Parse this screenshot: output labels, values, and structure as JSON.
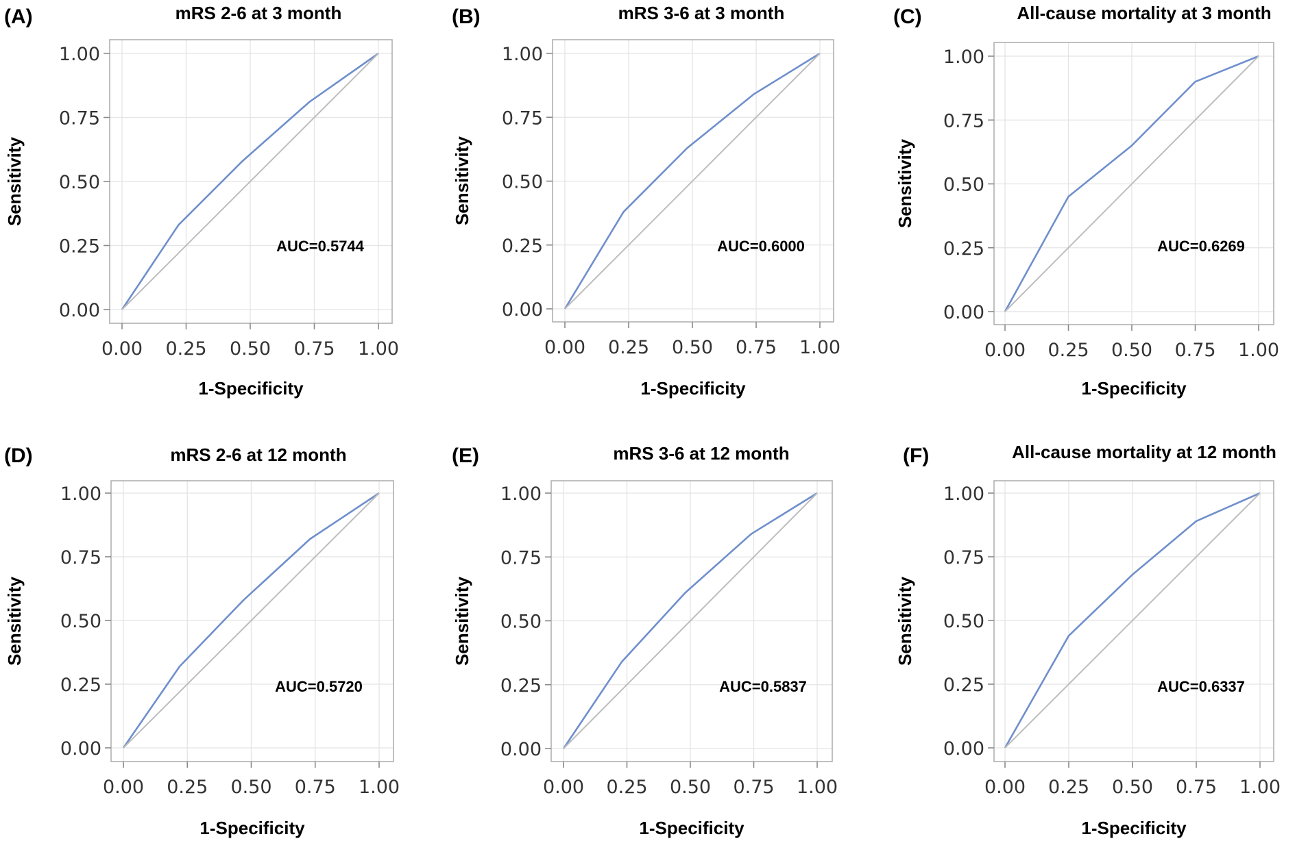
{
  "chart_data": [
    {
      "type": "line",
      "panel": "(A)",
      "title": "mRS 2-6 at 3 month",
      "xlabel": "1-Specificity",
      "ylabel": "Sensitivity",
      "xlim": [
        0,
        1
      ],
      "ylim": [
        0,
        1
      ],
      "xticks": [
        "0.00",
        "0.25",
        "0.50",
        "0.75",
        "1.00"
      ],
      "yticks": [
        "0.00",
        "0.25",
        "0.50",
        "0.75",
        "1.00"
      ],
      "annotation": "AUC=0.5744",
      "series": [
        {
          "name": "ROC",
          "x": [
            0,
            0.22,
            0.47,
            0.73,
            1.0
          ],
          "y": [
            0,
            0.33,
            0.58,
            0.81,
            1.0
          ]
        },
        {
          "name": "Reference",
          "x": [
            0,
            1
          ],
          "y": [
            0,
            1
          ]
        }
      ],
      "grid": true
    },
    {
      "type": "line",
      "panel": "(B)",
      "title": "mRS 3-6 at 3 month",
      "xlabel": "1-Specificity",
      "ylabel": "Sensitivity",
      "xlim": [
        0,
        1
      ],
      "ylim": [
        0,
        1
      ],
      "xticks": [
        "0.00",
        "0.25",
        "0.50",
        "0.75",
        "1.00"
      ],
      "yticks": [
        "0.00",
        "0.25",
        "0.50",
        "0.75",
        "1.00"
      ],
      "annotation": "AUC=0.6000",
      "series": [
        {
          "name": "ROC",
          "x": [
            0,
            0.23,
            0.48,
            0.74,
            1.0
          ],
          "y": [
            0,
            0.38,
            0.63,
            0.84,
            1.0
          ]
        },
        {
          "name": "Reference",
          "x": [
            0,
            1
          ],
          "y": [
            0,
            1
          ]
        }
      ],
      "grid": true
    },
    {
      "type": "line",
      "panel": "(C)",
      "title": "All-cause mortality at 3 month",
      "xlabel": "1-Specificity",
      "ylabel": "Sensitivity",
      "xlim": [
        0,
        1
      ],
      "ylim": [
        0,
        1
      ],
      "xticks": [
        "0.00",
        "0.25",
        "0.50",
        "0.75",
        "1.00"
      ],
      "yticks": [
        "0.00",
        "0.25",
        "0.50",
        "0.75",
        "1.00"
      ],
      "annotation": "AUC=0.6269",
      "series": [
        {
          "name": "ROC",
          "x": [
            0,
            0.25,
            0.5,
            0.75,
            1.0
          ],
          "y": [
            0,
            0.45,
            0.65,
            0.9,
            1.0
          ]
        },
        {
          "name": "Reference",
          "x": [
            0,
            1
          ],
          "y": [
            0,
            1
          ]
        }
      ],
      "grid": true
    },
    {
      "type": "line",
      "panel": "(D)",
      "title": "mRS 2-6 at 12 month",
      "xlabel": "1-Specificity",
      "ylabel": "Sensitivity",
      "xlim": [
        0,
        1
      ],
      "ylim": [
        0,
        1
      ],
      "xticks": [
        "0.00",
        "0.25",
        "0.50",
        "0.75",
        "1.00"
      ],
      "yticks": [
        "0.00",
        "0.25",
        "0.50",
        "0.75",
        "1.00"
      ],
      "annotation": "AUC=0.5720",
      "series": [
        {
          "name": "ROC",
          "x": [
            0,
            0.22,
            0.47,
            0.73,
            1.0
          ],
          "y": [
            0,
            0.32,
            0.58,
            0.82,
            1.0
          ]
        },
        {
          "name": "Reference",
          "x": [
            0,
            1
          ],
          "y": [
            0,
            1
          ]
        }
      ],
      "grid": true
    },
    {
      "type": "line",
      "panel": "(E)",
      "title": "mRS 3-6 at 12 month",
      "xlabel": "1-Specificity",
      "ylabel": "Sensitivity",
      "xlim": [
        0,
        1
      ],
      "ylim": [
        0,
        1
      ],
      "xticks": [
        "0.00",
        "0.25",
        "0.50",
        "0.75",
        "1.00"
      ],
      "yticks": [
        "0.00",
        "0.25",
        "0.50",
        "0.75",
        "1.00"
      ],
      "annotation": "AUC=0.5837",
      "series": [
        {
          "name": "ROC",
          "x": [
            0,
            0.23,
            0.48,
            0.74,
            1.0
          ],
          "y": [
            0,
            0.34,
            0.61,
            0.84,
            1.0
          ]
        },
        {
          "name": "Reference",
          "x": [
            0,
            1
          ],
          "y": [
            0,
            1
          ]
        }
      ],
      "grid": true
    },
    {
      "type": "line",
      "panel": "(F)",
      "title": "All-cause mortality at 12 month",
      "xlabel": "1-Specificity",
      "ylabel": "Sensitivity",
      "xlim": [
        0,
        1
      ],
      "ylim": [
        0,
        1
      ],
      "xticks": [
        "0.00",
        "0.25",
        "0.50",
        "0.75",
        "1.00"
      ],
      "yticks": [
        "0.00",
        "0.25",
        "0.50",
        "0.75",
        "1.00"
      ],
      "annotation": "AUC=0.6337",
      "series": [
        {
          "name": "ROC",
          "x": [
            0,
            0.25,
            0.5,
            0.75,
            1.0
          ],
          "y": [
            0,
            0.44,
            0.68,
            0.89,
            1.0
          ]
        },
        {
          "name": "Reference",
          "x": [
            0,
            1
          ],
          "y": [
            0,
            1
          ]
        }
      ],
      "grid": true
    }
  ],
  "colors": {
    "roc": "#6f8fcc",
    "reference": "#bdbdbd",
    "grid": "#e4e4e4",
    "frame": "#b0b0b0"
  }
}
